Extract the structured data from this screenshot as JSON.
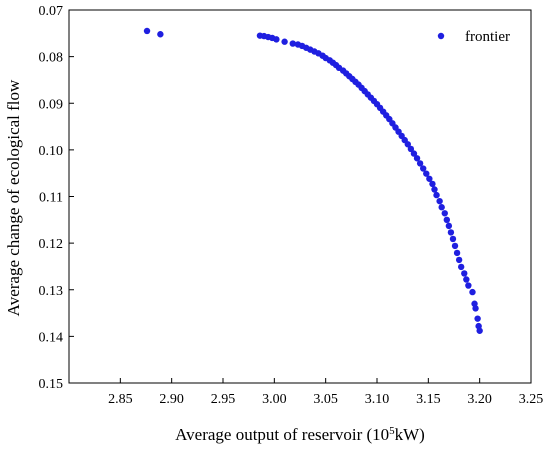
{
  "chart_data": {
    "type": "scatter",
    "xlabel_main": "Average output of reservoir (10",
    "xlabel_sup": "5",
    "xlabel_end": "kW)",
    "ylabel": "Average change of ecological flow",
    "xlim": [
      2.8,
      3.25
    ],
    "ylim": [
      0.07,
      0.15
    ],
    "y_inverted": true,
    "xticks": [
      2.85,
      2.9,
      2.95,
      3.0,
      3.05,
      3.1,
      3.15,
      3.2,
      3.25
    ],
    "xtick_labels": [
      "2.85",
      "2.90",
      "2.95",
      "3.00",
      "3.05",
      "3.10",
      "3.15",
      "3.20",
      "3.25"
    ],
    "yticks": [
      0.07,
      0.08,
      0.09,
      0.1,
      0.11,
      0.12,
      0.13,
      0.14,
      0.15
    ],
    "ytick_labels": [
      "0.07",
      "0.08",
      "0.09",
      "0.10",
      "0.11",
      "0.12",
      "0.13",
      "0.14",
      "0.15"
    ],
    "legend_position": "top-right",
    "marker_color": "#1f1fe0",
    "series": [
      {
        "name": "frontier",
        "points": [
          [
            2.876,
            0.0745
          ],
          [
            2.889,
            0.0752
          ],
          [
            2.986,
            0.0755
          ],
          [
            2.99,
            0.0756
          ],
          [
            2.994,
            0.0758
          ],
          [
            2.998,
            0.076
          ],
          [
            3.002,
            0.0763
          ],
          [
            3.01,
            0.0768
          ],
          [
            3.018,
            0.0772
          ],
          [
            3.023,
            0.0774
          ],
          [
            3.027,
            0.0777
          ],
          [
            3.031,
            0.0781
          ],
          [
            3.035,
            0.0785
          ],
          [
            3.039,
            0.0789
          ],
          [
            3.043,
            0.0793
          ],
          [
            3.047,
            0.0798
          ],
          [
            3.05,
            0.0803
          ],
          [
            3.054,
            0.0808
          ],
          [
            3.057,
            0.0813
          ],
          [
            3.06,
            0.0818
          ],
          [
            3.063,
            0.0824
          ],
          [
            3.067,
            0.083
          ],
          [
            3.07,
            0.0836
          ],
          [
            3.073,
            0.0842
          ],
          [
            3.076,
            0.0848
          ],
          [
            3.079,
            0.0854
          ],
          [
            3.082,
            0.086
          ],
          [
            3.085,
            0.0867
          ],
          [
            3.088,
            0.0874
          ],
          [
            3.091,
            0.0881
          ],
          [
            3.094,
            0.0888
          ],
          [
            3.097,
            0.0895
          ],
          [
            3.1,
            0.0902
          ],
          [
            3.103,
            0.091
          ],
          [
            3.106,
            0.0918
          ],
          [
            3.109,
            0.0926
          ],
          [
            3.112,
            0.0934
          ],
          [
            3.115,
            0.0943
          ],
          [
            3.118,
            0.0952
          ],
          [
            3.121,
            0.0961
          ],
          [
            3.124,
            0.097
          ],
          [
            3.127,
            0.0979
          ],
          [
            3.13,
            0.0988
          ],
          [
            3.133,
            0.0998
          ],
          [
            3.136,
            0.1008
          ],
          [
            3.139,
            0.1018
          ],
          [
            3.142,
            0.1029
          ],
          [
            3.145,
            0.104
          ],
          [
            3.148,
            0.1051
          ],
          [
            3.151,
            0.1062
          ],
          [
            3.154,
            0.1073
          ],
          [
            3.156,
            0.1085
          ],
          [
            3.158,
            0.1097
          ],
          [
            3.161,
            0.111
          ],
          [
            3.163,
            0.1123
          ],
          [
            3.166,
            0.1136
          ],
          [
            3.168,
            0.115
          ],
          [
            3.17,
            0.1163
          ],
          [
            3.172,
            0.1177
          ],
          [
            3.174,
            0.1191
          ],
          [
            3.176,
            0.1206
          ],
          [
            3.178,
            0.1221
          ],
          [
            3.18,
            0.1236
          ],
          [
            3.182,
            0.1251
          ],
          [
            3.185,
            0.1265
          ],
          [
            3.187,
            0.1278
          ],
          [
            3.189,
            0.1291
          ],
          [
            3.193,
            0.1305
          ],
          [
            3.195,
            0.133
          ],
          [
            3.196,
            0.134
          ],
          [
            3.198,
            0.1362
          ],
          [
            3.199,
            0.1378
          ],
          [
            3.2,
            0.1388
          ]
        ]
      }
    ]
  }
}
